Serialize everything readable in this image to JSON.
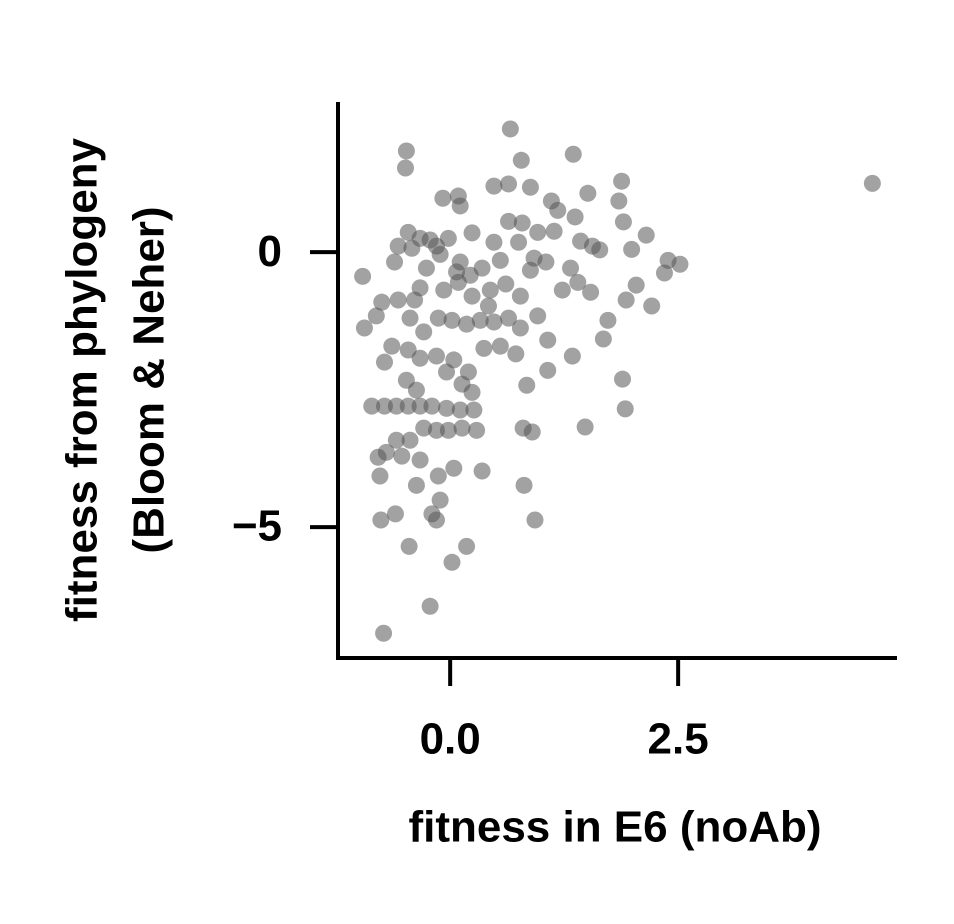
{
  "chart_data": {
    "type": "scatter",
    "xlabel": "fitness in E6 (noAb)",
    "ylabel": [
      "fitness from phylogeny",
      "(Bloom & Neher)"
    ],
    "color": "#555555",
    "alpha": 0.55,
    "xlim": [
      -1.23,
      4.9
    ],
    "ylim": [
      -7.38,
      2.73
    ],
    "xticks": [
      {
        "value": 0,
        "label": "0.0"
      },
      {
        "value": 2.5,
        "label": "2.5"
      }
    ],
    "yticks": [
      0,
      {
        "value": -5,
        "label": "−5"
      }
    ],
    "x": [
      4.63,
      0.66,
      1.35,
      -0.48,
      -0.49,
      0.78,
      0.48,
      0.64,
      0.88,
      1.88,
      1.51,
      1.85,
      -0.08,
      0.09,
      0.11,
      1.11,
      1.18,
      1.37,
      1.9,
      0.64,
      0.79,
      0.96,
      1.14,
      2.15,
      -0.46,
      -0.33,
      -0.22,
      -0.02,
      0.24,
      0.48,
      0.75,
      1.43,
      1.56,
      1.64,
      1.99,
      2.39,
      2.52,
      2.35,
      -0.96,
      -0.61,
      -0.42,
      -0.11,
      0.11,
      0.22,
      0.35,
      0.55,
      0.88,
      1.05,
      1.32,
      1.4,
      1.54,
      2.04,
      1.93,
      2.21,
      1.73,
      1.68,
      1.34,
      1.07,
      1.89,
      1.92,
      1.48,
      0.84,
      0.9,
      0.8,
      0.81,
      0.93,
      0.35,
      0.18,
      0.02,
      -0.22,
      -0.73,
      -0.45,
      -0.76,
      -0.6,
      -0.2,
      -0.15,
      -0.11,
      -0.37,
      -0.13,
      0.04,
      -0.77,
      -0.79,
      -0.7,
      -0.53,
      -0.33,
      -0.86,
      -0.72,
      -0.59,
      -0.46,
      -0.33,
      -0.2,
      -0.04,
      0.11,
      0.26,
      -0.48,
      -0.37,
      -0.29,
      -0.15,
      -0.02,
      0.13,
      0.29,
      -0.59,
      -0.44,
      -0.72,
      -0.64,
      -0.46,
      -0.33,
      -0.15,
      0.04,
      0.2,
      -0.04,
      0.13,
      0.24,
      -0.94,
      -0.81,
      -0.75,
      -0.57,
      -0.39,
      -0.44,
      -0.29,
      -0.13,
      0.02,
      0.18,
      0.33,
      0.48,
      0.64,
      0.77,
      0.55,
      0.37,
      0.72,
      0.96,
      1.07,
      -0.07,
      0.09,
      0.24,
      0.44,
      0.61,
      0.77,
      -0.26,
      -0.33,
      -0.57,
      -0.15,
      0.07,
      0.42,
      1.23,
      0.92
    ],
    "values": [
      1.25,
      2.24,
      1.78,
      1.84,
      1.53,
      1.67,
      1.2,
      1.24,
      1.18,
      1.29,
      1.07,
      0.93,
      0.98,
      1.02,
      0.84,
      0.93,
      0.76,
      0.64,
      0.55,
      0.56,
      0.53,
      0.36,
      0.38,
      0.31,
      0.36,
      0.25,
      0.22,
      0.25,
      0.35,
      0.18,
      0.18,
      0.2,
      0.11,
      0.04,
      0.05,
      -0.15,
      -0.22,
      -0.38,
      -0.44,
      -0.18,
      0.07,
      -0.04,
      -0.18,
      -0.42,
      -0.29,
      -0.15,
      -0.33,
      -0.18,
      -0.29,
      -0.55,
      -0.73,
      -0.6,
      -0.87,
      -0.98,
      -1.24,
      -1.58,
      -1.89,
      -2.15,
      -2.31,
      -2.85,
      -3.18,
      -2.42,
      -3.27,
      -3.2,
      -4.24,
      -4.87,
      -3.98,
      -5.35,
      -5.64,
      -6.44,
      -6.93,
      -5.35,
      -4.87,
      -4.76,
      -4.76,
      -4.87,
      -4.51,
      -4.24,
      -4.07,
      -3.93,
      -4.07,
      -3.73,
      -3.64,
      -3.71,
      -3.78,
      -2.8,
      -2.8,
      -2.8,
      -2.8,
      -2.8,
      -2.8,
      -2.84,
      -2.87,
      -2.87,
      -2.33,
      -2.51,
      -3.2,
      -3.24,
      -3.24,
      -3.2,
      -3.24,
      -3.42,
      -3.42,
      -2.0,
      -1.71,
      -1.78,
      -1.93,
      -1.89,
      -1.96,
      -2.18,
      -2.18,
      -2.4,
      -2.55,
      -1.38,
      -1.16,
      -0.91,
      -0.87,
      -0.87,
      -1.2,
      -1.45,
      -1.2,
      -1.24,
      -1.31,
      -1.24,
      -1.27,
      -1.2,
      -1.38,
      -1.71,
      -1.75,
      -1.85,
      -1.16,
      -1.6,
      -0.69,
      -0.55,
      -0.8,
      -0.69,
      -0.58,
      -0.8,
      -0.29,
      -0.65,
      0.11,
      0.11,
      -0.36,
      -0.98,
      -0.69,
      -0.11
    ]
  }
}
